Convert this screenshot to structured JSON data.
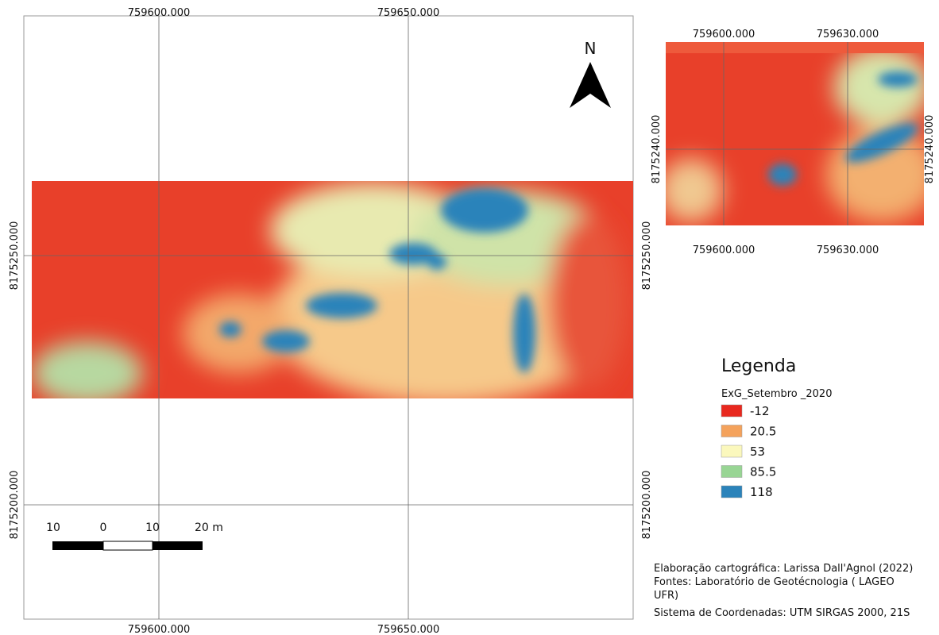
{
  "map": {
    "top_labels": [
      "759600.000",
      "759650.000"
    ],
    "bottom_labels": [
      "759600.000",
      "759650.000"
    ],
    "left_labels": [
      "8175250.000",
      "8175200.000"
    ],
    "right_labels": [
      "8175250.000",
      "8175200.000"
    ],
    "north": "N",
    "scale_bar": [
      "10",
      "0",
      "10",
      "20 m"
    ]
  },
  "inset": {
    "top_labels": [
      "759600.000",
      "759630.000"
    ],
    "bottom_labels": [
      "759600.000",
      "759630.000"
    ],
    "left_labels": [
      "8175240.000"
    ],
    "right_labels": [
      "8175240.000"
    ]
  },
  "legend": {
    "title": "Legenda",
    "layer": "ExG_Setembro _2020",
    "items": [
      {
        "label": "-12",
        "color": "#e8281e"
      },
      {
        "label": "20.5",
        "color": "#f4a25c"
      },
      {
        "label": "53",
        "color": "#fbf8bd"
      },
      {
        "label": "85.5",
        "color": "#98d594"
      },
      {
        "label": "118",
        "color": "#2b83ba"
      }
    ]
  },
  "credits": [
    "Elaboração cartográfica: Larissa Dall'Agnol (2022)",
    "Fontes:  Laboratório  de  Geotécnologia  (  LAGEO",
    "UFR)",
    "Sistema de Coordenadas: UTM SIRGAS 2000, 21S"
  ]
}
